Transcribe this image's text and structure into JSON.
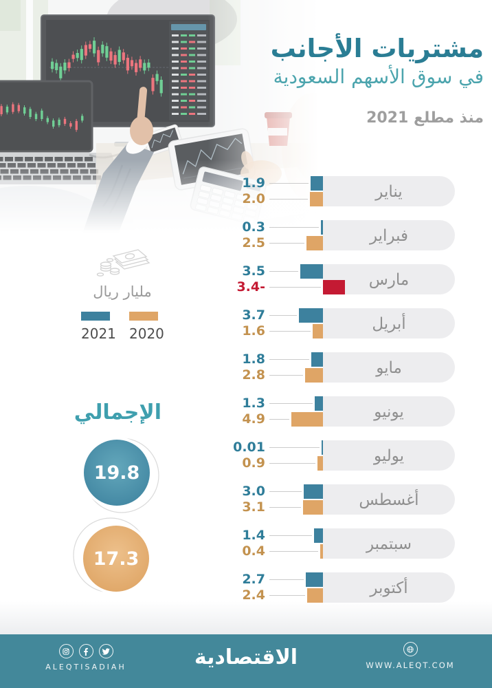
{
  "title": {
    "line1": "مشتريات الأجانب",
    "line2": "في سوق الأسهم السعودية",
    "subtitle": "منذ مطلع 2021"
  },
  "unit_block": {
    "icon": "banknotes-coins-icon",
    "label": "مليار ريال"
  },
  "legend": {
    "items": [
      {
        "label": "2021",
        "color": "#3d819e"
      },
      {
        "label": "2020",
        "color": "#dfa566"
      }
    ]
  },
  "totals": {
    "heading": "الإجمالي",
    "items": [
      {
        "series": "2021",
        "value": "19.8",
        "color": "#3d87a1"
      },
      {
        "series": "2020",
        "value": "17.3",
        "color": "#e0a768"
      }
    ]
  },
  "chart_data": {
    "type": "bar",
    "orientation": "horizontal",
    "title": "مشتريات الأجانب في سوق الأسهم السعودية منذ مطلع 2021",
    "unit": "مليار ريال",
    "categories": [
      "يناير",
      "فبراير",
      "مارس",
      "أبريل",
      "مايو",
      "يونيو",
      "يوليو",
      "أغسطس",
      "سبتمبر",
      "أكتوبر"
    ],
    "series": [
      {
        "name": "2021",
        "color": "#3d819e",
        "values": [
          1.9,
          0.3,
          3.5,
          3.7,
          1.8,
          1.3,
          0.01,
          3.0,
          1.4,
          2.7
        ],
        "labels": [
          "1.9",
          "0.3",
          "3.5",
          "3.7",
          "1.8",
          "1.3",
          "0.01",
          "3.0",
          "1.4",
          "2.7"
        ]
      },
      {
        "name": "2020",
        "color": "#dfa566",
        "values": [
          2.0,
          2.5,
          -3.4,
          1.6,
          2.8,
          4.9,
          0.9,
          3.1,
          0.4,
          2.4
        ],
        "labels": [
          "2.0",
          "2.5",
          "3.4-",
          "1.6",
          "2.8",
          "4.9",
          "0.9",
          "3.1",
          "0.4",
          "2.4"
        ]
      }
    ],
    "negative_color": "#c41a33",
    "label_colors": {
      "2021": "#2f7d99",
      "2020": "#c3924f",
      "negative": "#c41a33"
    },
    "totals": {
      "2021": 19.8,
      "2020": 17.3
    }
  },
  "footer": {
    "bg": "#43889a",
    "logo": "الاقتصادية",
    "social_handle": "ALEQTISADIAH",
    "website": "WWW.ALEQT.COM",
    "icons": [
      "instagram-icon",
      "facebook-icon",
      "twitter-icon",
      "globe-icon"
    ]
  }
}
